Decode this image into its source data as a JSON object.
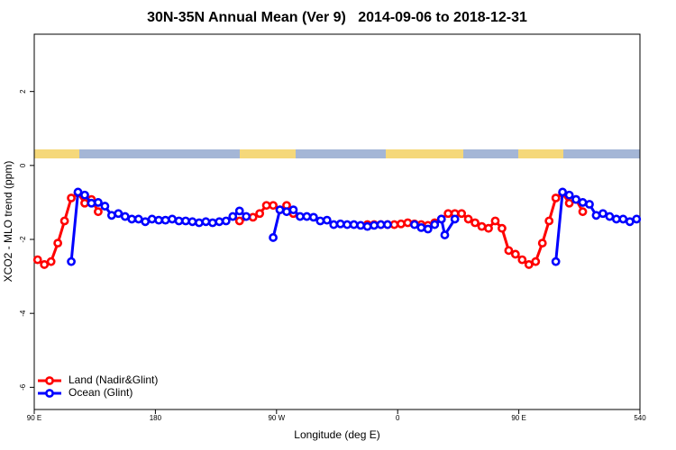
{
  "chart_data": {
    "type": "line",
    "title": "30N-35N Annual Mean (Ver 9)   2014-09-06 to 2018-12-31",
    "x_label": "Longitude (deg E)",
    "y_label": "XCO2 - MLO trend (ppm)",
    "xlim": [
      90,
      540
    ],
    "ylim": [
      -6.6,
      3.55
    ],
    "xticks": [
      {
        "value": 90,
        "label": "90 E"
      },
      180,
      {
        "value": 270,
        "label": "90 W"
      },
      {
        "value": 360,
        "label": "0"
      },
      {
        "value": 450,
        "label": "90 E"
      },
      540
    ],
    "yticks": [
      -6,
      -4,
      -2,
      0,
      2
    ],
    "legend": "bottom-left",
    "series": [
      {
        "name": "Land (Nadir&Glint)",
        "color": "#ff0000",
        "x": [
          92.5,
          97.5,
          102.5,
          107.5,
          112.5,
          117.5,
          122.5,
          127.5,
          132.5,
          137.5,
          142.5,
          242.5,
          252.5,
          257.5,
          262.5,
          267.5,
          272.5,
          277.5,
          282.5,
          287.5,
          337.5,
          342.5,
          347.5,
          352.5,
          357.5,
          362.5,
          367.5,
          372.5,
          377.5,
          382.5,
          387.5,
          392.5,
          397.5,
          402.5,
          407.5,
          412.5,
          417.5,
          422.5,
          427.5,
          432.5,
          437.5,
          442.5,
          447.5,
          452.5,
          457.5,
          462.5,
          467.5,
          472.5,
          477.5,
          482.5,
          487.5,
          492.5,
          497.5
        ],
        "values": [
          -2.55,
          -2.68,
          -2.6,
          -2.1,
          -1.5,
          -0.88,
          -0.75,
          -1.02,
          -0.92,
          -1.25,
          null,
          -1.5,
          -1.4,
          -1.3,
          -1.08,
          -1.08,
          -1.2,
          -1.08,
          -1.3,
          null,
          -1.6,
          -1.6,
          -1.6,
          -1.6,
          -1.6,
          -1.58,
          -1.55,
          -1.58,
          -1.6,
          -1.62,
          -1.55,
          -1.45,
          -1.3,
          -1.3,
          -1.3,
          -1.45,
          -1.55,
          -1.65,
          -1.7,
          -1.5,
          -1.7,
          -2.3,
          -2.4,
          -2.55,
          -2.68,
          -2.6,
          -2.1,
          -1.5,
          -0.88,
          -0.75,
          -1.02,
          -0.92,
          -1.25
        ]
      },
      {
        "name": "Ocean (Glint)",
        "color": "#0000ff",
        "x": [
          117.5,
          122.5,
          127.5,
          132.5,
          137.5,
          142.5,
          147.5,
          152.5,
          157.5,
          162.5,
          167.5,
          172.5,
          177.5,
          182.5,
          187.5,
          192.5,
          197.5,
          202.5,
          207.5,
          212.5,
          217.5,
          222.5,
          227.5,
          232.5,
          237.5,
          242.5,
          247.5,
          252.5,
          267.5,
          272.5,
          277.5,
          282.5,
          287.5,
          292.5,
          297.5,
          302.5,
          307.5,
          312.5,
          317.5,
          322.5,
          327.5,
          332.5,
          337.5,
          342.5,
          347.5,
          352.5,
          357.5,
          372.5,
          377.5,
          382.5,
          387.5,
          392.5,
          395,
          402.5,
          407.5,
          477.5,
          482.5,
          487.5,
          492.5,
          497.5,
          502.5,
          507.5,
          512.5,
          517.5,
          522.5,
          527.5,
          532.5,
          537.5
        ],
        "values": [
          -2.6,
          -0.72,
          -0.8,
          -1.02,
          -1.0,
          -1.1,
          -1.35,
          -1.3,
          -1.38,
          -1.45,
          -1.45,
          -1.52,
          -1.45,
          -1.48,
          -1.48,
          -1.45,
          -1.5,
          -1.5,
          -1.52,
          -1.55,
          -1.52,
          -1.55,
          -1.52,
          -1.5,
          -1.38,
          -1.23,
          -1.38,
          null,
          -1.95,
          -1.2,
          -1.25,
          -1.2,
          -1.38,
          -1.38,
          -1.4,
          -1.5,
          -1.48,
          -1.6,
          -1.58,
          -1.6,
          -1.6,
          -1.62,
          -1.65,
          -1.62,
          -1.6,
          -1.6,
          null,
          -1.6,
          -1.68,
          -1.72,
          -1.6,
          -1.45,
          -1.88,
          -1.45,
          null,
          -2.6,
          -0.72,
          -0.8,
          -0.92,
          -1.0,
          -1.05,
          -1.35,
          -1.3,
          -1.38,
          -1.45,
          -1.45,
          -1.52,
          -1.45
        ]
      }
    ]
  }
}
